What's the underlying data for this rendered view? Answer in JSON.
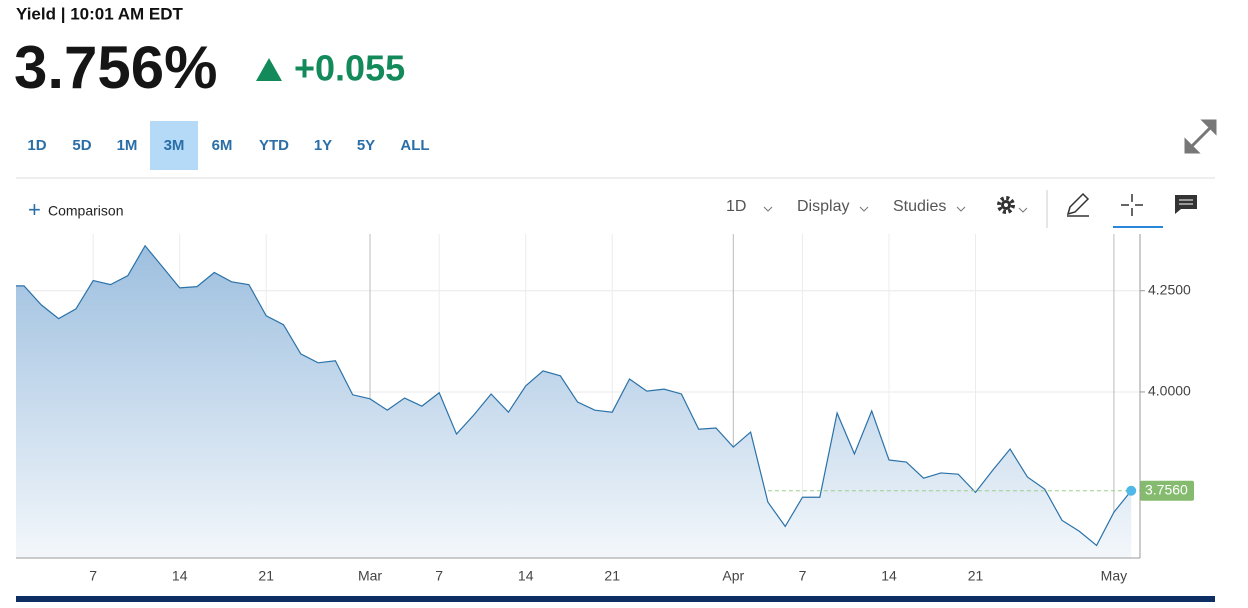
{
  "header": {
    "title": "Yield | 10:01 AM EDT",
    "price": "3.756%",
    "change": "+0.055"
  },
  "ranges": [
    "1D",
    "5D",
    "1M",
    "3M",
    "6M",
    "YTD",
    "1Y",
    "5Y",
    "ALL"
  ],
  "selected_range": "3M",
  "toolbar": {
    "comparison": "Comparison",
    "interval": "1D",
    "display": "Display",
    "studies": "Studies"
  },
  "chart_data": {
    "type": "area",
    "color": "#2b72a8",
    "categories": [
      null,
      null,
      null,
      null,
      "7",
      null,
      null,
      null,
      null,
      "14",
      null,
      null,
      null,
      null,
      "21",
      null,
      null,
      null,
      null,
      null,
      "Mar",
      null,
      null,
      null,
      "7",
      null,
      null,
      null,
      null,
      "14",
      null,
      null,
      null,
      null,
      "21",
      null,
      null,
      null,
      null,
      null,
      null,
      "Apr",
      null,
      null,
      null,
      "7",
      null,
      null,
      null,
      null,
      "14",
      null,
      null,
      null,
      null,
      "21",
      null,
      null,
      null,
      null,
      null,
      null,
      null,
      "May",
      null
    ],
    "values": [
      4.262,
      4.215,
      4.181,
      4.205,
      4.275,
      4.265,
      4.287,
      4.361,
      4.309,
      4.257,
      4.26,
      4.295,
      4.272,
      4.265,
      4.188,
      4.166,
      4.094,
      4.072,
      4.077,
      3.993,
      3.983,
      3.955,
      3.985,
      3.965,
      3.998,
      3.896,
      3.943,
      3.995,
      3.95,
      4.015,
      4.052,
      4.04,
      3.975,
      3.955,
      3.95,
      4.032,
      4.002,
      4.007,
      3.995,
      3.908,
      3.911,
      3.864,
      3.901,
      3.728,
      3.668,
      3.74,
      3.74,
      3.948,
      3.847,
      3.953,
      3.832,
      3.827,
      3.787,
      3.8,
      3.797,
      3.752,
      3.807,
      3.859,
      3.79,
      3.76,
      3.683,
      3.656,
      3.621,
      3.703,
      3.756
    ],
    "value_labels": [
      null,
      null,
      null,
      null,
      null,
      null,
      null,
      null,
      null,
      null,
      null,
      null,
      null,
      null,
      null,
      null,
      null,
      null,
      null,
      null,
      null,
      null,
      null,
      null,
      null,
      null,
      null,
      null,
      null,
      null,
      null,
      null,
      null,
      null,
      null,
      null,
      null,
      null,
      null,
      null,
      null,
      null,
      null,
      null,
      null,
      null,
      null,
      null,
      null,
      null,
      null,
      null,
      null,
      null,
      null,
      null,
      null,
      null,
      null,
      null,
      null,
      null,
      null,
      null,
      "3.7560"
    ],
    "ylim": [
      3.59,
      4.39
    ],
    "yticks": [
      {
        "value": 4.25,
        "label": "4.2500"
      },
      {
        "value": 4,
        "label": "4.0000"
      }
    ],
    "grid": true
  }
}
